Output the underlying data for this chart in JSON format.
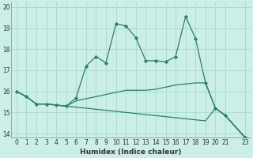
{
  "xlabel": "Humidex (Indice chaleur)",
  "background_color": "#cceee8",
  "line_color": "#2e7d6e",
  "grid_color": "#aaddcc",
  "xlim": [
    -0.5,
    23.5
  ],
  "ylim": [
    13.8,
    20.2
  ],
  "yticks": [
    14,
    15,
    16,
    17,
    18,
    19,
    20
  ],
  "xticks": [
    0,
    1,
    2,
    3,
    4,
    5,
    6,
    7,
    8,
    9,
    10,
    11,
    12,
    13,
    14,
    15,
    16,
    17,
    18,
    19,
    20,
    21,
    23
  ],
  "line1_x": [
    0,
    1,
    2,
    3,
    4,
    5,
    6,
    7,
    8,
    9,
    10,
    11,
    12,
    13,
    14,
    15,
    16,
    17,
    18,
    19,
    20,
    21,
    23
  ],
  "line1_y": [
    16.0,
    15.75,
    15.4,
    15.4,
    15.35,
    15.3,
    15.7,
    17.2,
    17.65,
    17.35,
    19.2,
    19.1,
    18.55,
    17.45,
    17.45,
    17.4,
    17.65,
    19.55,
    18.5,
    16.4,
    15.2,
    14.85,
    13.8
  ],
  "line2_x": [
    0,
    1,
    2,
    3,
    4,
    5,
    6,
    7,
    8,
    9,
    10,
    11,
    12,
    13,
    14,
    15,
    16,
    17,
    18,
    19,
    20,
    21,
    23
  ],
  "line2_y": [
    16.0,
    15.75,
    15.4,
    15.4,
    15.35,
    15.3,
    15.55,
    15.65,
    15.75,
    15.85,
    15.95,
    16.05,
    16.05,
    16.05,
    16.1,
    16.2,
    16.3,
    16.35,
    16.4,
    16.4,
    15.2,
    14.85,
    13.8
  ],
  "line3_x": [
    0,
    1,
    2,
    3,
    4,
    5,
    6,
    7,
    8,
    9,
    10,
    11,
    12,
    13,
    14,
    15,
    16,
    17,
    18,
    19,
    20,
    21,
    23
  ],
  "line3_y": [
    16.0,
    15.75,
    15.4,
    15.4,
    15.35,
    15.3,
    15.25,
    15.2,
    15.15,
    15.1,
    15.05,
    15.0,
    14.95,
    14.9,
    14.85,
    14.8,
    14.75,
    14.7,
    14.65,
    14.6,
    15.2,
    14.85,
    13.8
  ]
}
